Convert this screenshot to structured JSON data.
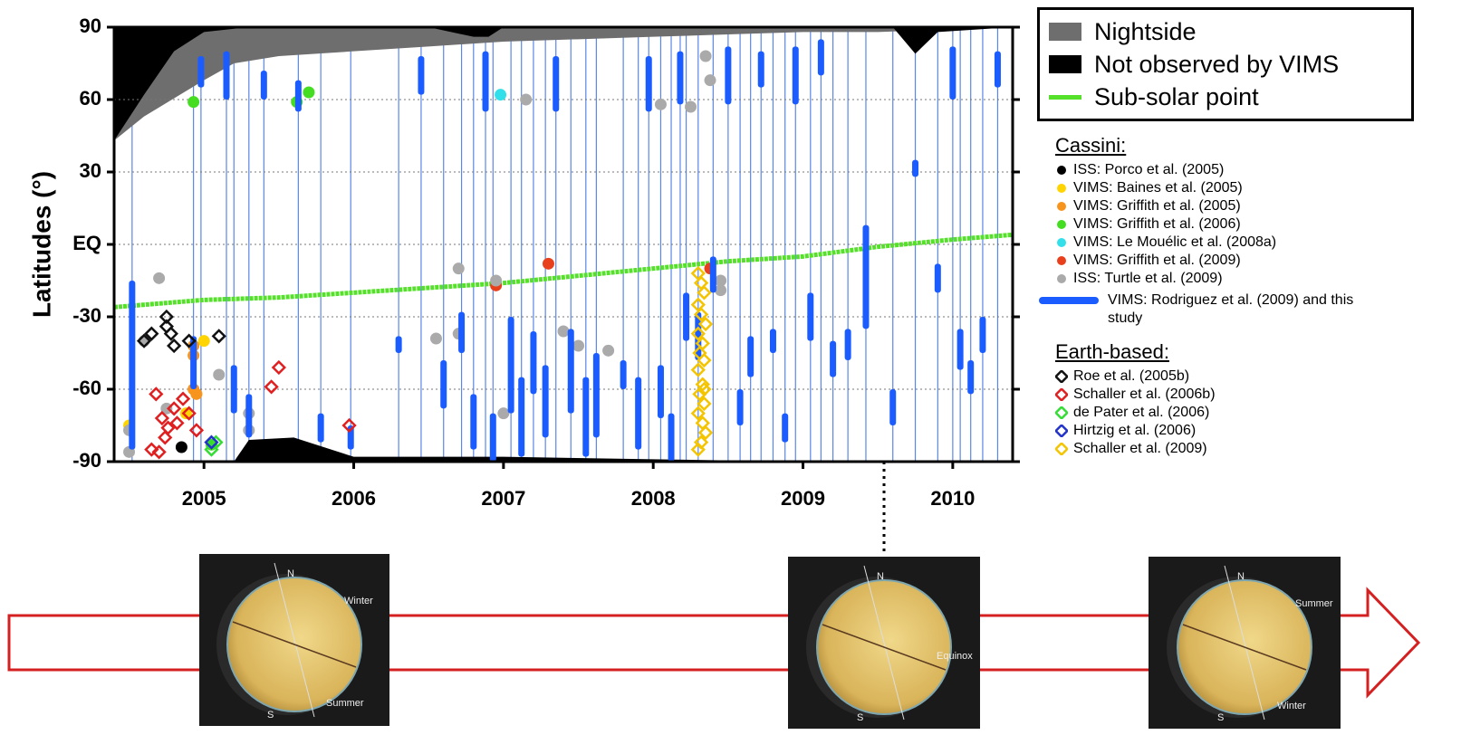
{
  "chart_data": {
    "type": "scatter",
    "y_label": "Latitudes (°)",
    "xlim": [
      2004.4,
      2010.4
    ],
    "xticks": [
      2005,
      2006,
      2007,
      2008,
      2009,
      2010
    ],
    "ylim": [
      -90,
      90
    ],
    "yticks": [
      -90,
      -60,
      -30,
      {
        "value": 0,
        "label": "EQ"
      },
      30,
      60,
      90
    ],
    "grid": true,
    "regions": [
      {
        "name": "Nightside",
        "color": "#6e6e6e",
        "fill_to": "top",
        "x": [
          2004.4,
          2004.6,
          2005.0,
          2005.2,
          2005.5,
          2006.0,
          2006.5,
          2007.0,
          2007.5,
          2008.0,
          2008.5,
          2009.0,
          2009.5,
          2010.4
        ],
        "values": [
          43,
          53,
          68,
          75,
          78,
          80,
          82,
          84,
          85,
          86,
          87,
          88,
          88,
          90
        ]
      },
      {
        "name": "Not observed by VIMS",
        "color": "#000000",
        "fill_to": "top",
        "x": [
          2004.4,
          2004.6,
          2004.8,
          2005.0,
          2005.3,
          2006.5,
          2006.8,
          2006.9,
          2007.0,
          2009.6,
          2009.75,
          2009.9,
          2010.4
        ],
        "values": [
          43,
          62,
          80,
          88,
          90,
          90,
          86,
          86,
          90,
          90,
          79,
          88,
          90
        ],
        "bottom_x": [
          2004.4,
          2005.2,
          2005.3,
          2005.6,
          2005.8,
          2006.0,
          2007.0,
          2008.0,
          2009.0,
          2010.4
        ],
        "bottom_values": [
          -90,
          -90,
          -81,
          -80,
          -84,
          -88,
          -88,
          -89,
          -90,
          -90
        ]
      }
    ],
    "subsolar": {
      "name": "Sub-solar point",
      "color": "#55e02a",
      "x": [
        2004.4,
        2005.0,
        2005.5,
        2006.0,
        2006.5,
        2007.0,
        2007.5,
        2008.0,
        2008.5,
        2009.0,
        2009.5,
        2010.0,
        2010.4
      ],
      "values": [
        -26,
        -23,
        -22,
        -20,
        -18,
        -16,
        -13,
        -10,
        -7,
        -5,
        -1,
        2,
        4
      ]
    },
    "legend_groups": [
      {
        "title": "Cassini:"
      },
      {
        "title": "Earth-based:"
      }
    ],
    "series": [
      {
        "name": "ISS: Porco et al. (2005)",
        "group": 0,
        "marker": "dot",
        "color": "#000000",
        "x": [
          2004.85
        ],
        "values": [
          -84
        ]
      },
      {
        "name": "VIMS: Baines et al. (2005)",
        "group": 0,
        "marker": "dot",
        "color": "#ffd400",
        "x": [
          2004.5,
          2004.88,
          2005.0
        ],
        "values": [
          -75,
          -70,
          -40
        ]
      },
      {
        "name": "VIMS: Griffith et al. (2005)",
        "group": 0,
        "marker": "dot",
        "color": "#f7941d",
        "x": [
          2004.93,
          2004.93,
          2004.93,
          2004.95
        ],
        "values": [
          -42,
          -46,
          -60,
          -62
        ]
      },
      {
        "name": "VIMS: Griffith et al. (2006)",
        "group": 0,
        "marker": "dot",
        "color": "#44dd22",
        "x": [
          2004.93,
          2005.62,
          2005.7,
          2005.05
        ],
        "values": [
          59,
          59,
          63,
          -83
        ]
      },
      {
        "name": "VIMS: Le Mouélic et al. (2008a)",
        "group": 0,
        "marker": "dot",
        "color": "#33e0ea",
        "x": [
          2006.98
        ],
        "values": [
          62
        ]
      },
      {
        "name": "VIMS: Griffith et al. (2009)",
        "group": 0,
        "marker": "dot",
        "color": "#e8401c",
        "x": [
          2007.3,
          2008.38,
          2006.95
        ],
        "values": [
          -8,
          -10,
          -17
        ]
      },
      {
        "name": "ISS: Turtle et al. (2009)",
        "group": 0,
        "marker": "dot",
        "color": "#aaaaaa",
        "x": [
          2004.5,
          2004.5,
          2004.6,
          2004.7,
          2004.75,
          2005.1,
          2005.3,
          2005.3,
          2006.7,
          2006.55,
          2006.7,
          2006.95,
          2007.0,
          2007.15,
          2007.4,
          2007.5,
          2007.7,
          2008.05,
          2008.25,
          2008.35,
          2008.38,
          2008.45,
          2008.45
        ],
        "values": [
          -77,
          -86,
          -40,
          -14,
          -68,
          -54,
          -70,
          -77,
          -10,
          -39,
          -37,
          -15,
          -70,
          60,
          -36,
          -42,
          -44,
          58,
          57,
          78,
          68,
          -15,
          -19
        ]
      },
      {
        "name": "VIMS: Rodriguez et al. (2009) and this study",
        "group": 0,
        "marker": "bar",
        "color": "#1a5cff",
        "x": [
          2004.52,
          2004.93,
          2004.98,
          2005.2,
          2005.15,
          2005.3,
          2005.4,
          2005.63,
          2005.78,
          2005.98,
          2006.3,
          2006.45,
          2006.6,
          2006.72,
          2006.8,
          2006.88,
          2006.93,
          2007.05,
          2007.12,
          2007.2,
          2007.28,
          2007.35,
          2007.45,
          2007.55,
          2007.62,
          2007.8,
          2007.9,
          2007.97,
          2008.05,
          2008.12,
          2008.18,
          2008.22,
          2008.3,
          2008.4,
          2008.5,
          2008.58,
          2008.65,
          2008.72,
          2008.8,
          2008.88,
          2008.95,
          2009.05,
          2009.12,
          2009.2,
          2009.3,
          2009.42,
          2009.6,
          2009.75,
          2009.9,
          2010.0,
          2010.05,
          2010.12,
          2010.2,
          2010.3
        ],
        "ranges": [
          [
            -85,
            -15
          ],
          [
            -60,
            -38
          ],
          [
            65,
            78
          ],
          [
            -70,
            -50
          ],
          [
            60,
            80
          ],
          [
            -80,
            -62
          ],
          [
            60,
            72
          ],
          [
            55,
            68
          ],
          [
            -82,
            -70
          ],
          [
            -85,
            -75
          ],
          [
            -45,
            -38
          ],
          [
            62,
            78
          ],
          [
            -68,
            -48
          ],
          [
            -45,
            -28
          ],
          [
            -85,
            -62
          ],
          [
            55,
            80
          ],
          [
            -90,
            -70
          ],
          [
            -70,
            -30
          ],
          [
            -88,
            -55
          ],
          [
            -62,
            -36
          ],
          [
            -80,
            -50
          ],
          [
            55,
            78
          ],
          [
            -70,
            -35
          ],
          [
            -88,
            -55
          ],
          [
            -80,
            -45
          ],
          [
            -60,
            -48
          ],
          [
            -85,
            -55
          ],
          [
            55,
            78
          ],
          [
            -72,
            -50
          ],
          [
            -90,
            -70
          ],
          [
            58,
            80
          ],
          [
            -40,
            -20
          ],
          [
            -48,
            -28
          ],
          [
            -20,
            -5
          ],
          [
            58,
            82
          ],
          [
            -75,
            -60
          ],
          [
            -55,
            -38
          ],
          [
            65,
            80
          ],
          [
            -45,
            -35
          ],
          [
            -82,
            -70
          ],
          [
            58,
            82
          ],
          [
            -40,
            -20
          ],
          [
            70,
            85
          ],
          [
            -55,
            -40
          ],
          [
            -48,
            -35
          ],
          [
            -35,
            8
          ],
          [
            -75,
            -60
          ],
          [
            28,
            35
          ],
          [
            -20,
            -8
          ],
          [
            60,
            82
          ],
          [
            -52,
            -35
          ],
          [
            -62,
            -48
          ],
          [
            -45,
            -30
          ],
          [
            65,
            80
          ]
        ]
      },
      {
        "name": "Roe et al. (2005b)",
        "group": 1,
        "marker": "diamond",
        "color": "#111111",
        "x": [
          2004.6,
          2004.65,
          2004.75,
          2004.75,
          2004.8,
          2004.9,
          2005.1,
          2004.78
        ],
        "values": [
          -40,
          -37,
          -30,
          -34,
          -42,
          -40,
          -38,
          -37
        ]
      },
      {
        "name": "Schaller et al. (2006b)",
        "group": 1,
        "marker": "diamond",
        "color": "#e02020",
        "x": [
          2004.65,
          2004.7,
          2004.72,
          2004.76,
          2004.8,
          2004.82,
          2004.86,
          2004.9,
          2004.95,
          2004.68,
          2004.74,
          2005.45,
          2005.5,
          2005.97
        ],
        "values": [
          -85,
          -86,
          -72,
          -76,
          -68,
          -74,
          -64,
          -70,
          -77,
          -62,
          -80,
          -59,
          -51,
          -75
        ]
      },
      {
        "name": "de Pater et al. (2006)",
        "group": 1,
        "marker": "diamond",
        "color": "#33dd33",
        "x": [
          2005.05,
          2005.08
        ],
        "values": [
          -85,
          -82
        ]
      },
      {
        "name": "Hirtzig et al. (2006)",
        "group": 1,
        "marker": "diamond",
        "color": "#2233cc",
        "x": [
          2005.05
        ],
        "values": [
          -82
        ]
      },
      {
        "name": "Schaller et al. (2009)",
        "group": 1,
        "marker": "diamond",
        "color": "#f5c400",
        "x": [
          2008.3,
          2008.32,
          2008.34,
          2008.3,
          2008.32,
          2008.35,
          2008.3,
          2008.33,
          2008.31,
          2008.34,
          2008.3,
          2008.33,
          2008.31,
          2008.34,
          2008.3,
          2008.33,
          2008.35,
          2008.32,
          2008.3,
          2008.34
        ],
        "values": [
          -12,
          -16,
          -20,
          -25,
          -29,
          -33,
          -37,
          -41,
          -45,
          -48,
          -52,
          -58,
          -62,
          -66,
          -70,
          -74,
          -78,
          -82,
          -85,
          -60
        ]
      }
    ]
  },
  "seasons": [
    {
      "north": "N",
      "south": "S",
      "top_label": "Winter",
      "bottom_label": "Summer"
    },
    {
      "north": "N",
      "south": "S",
      "mid_label": "Equinox"
    },
    {
      "north": "N",
      "south": "S",
      "top_label": "Summer",
      "bottom_label": "Winter"
    }
  ]
}
